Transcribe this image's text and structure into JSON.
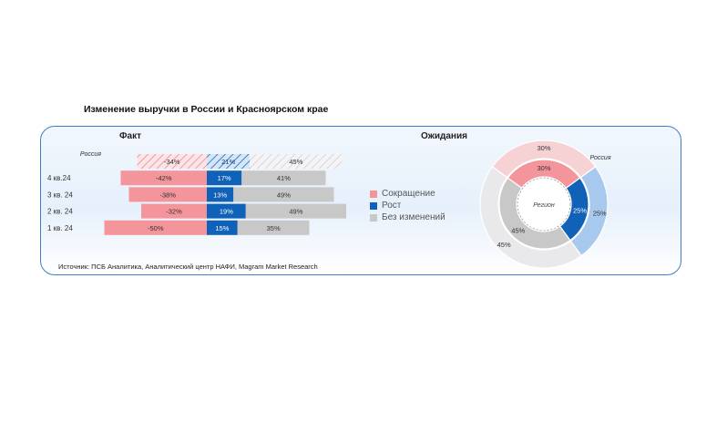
{
  "title": "Изменение выручки в России и Красноярском крае",
  "source": "Источник: ПСБ Аналитика, Аналитический центр НАФИ, Magram Market Research",
  "colors": {
    "decrease": "#f4959b",
    "growth": "#1061b8",
    "nochange": "#c8c8c8",
    "decrease_light": "#f7d2d5",
    "growth_light": "#a8c9ee",
    "nochange_light": "#e9e9ec"
  },
  "legend": [
    {
      "label": "Сокращение",
      "key": "decrease"
    },
    {
      "label": "Рост",
      "key": "growth"
    },
    {
      "label": "Без изменений",
      "key": "nochange"
    }
  ],
  "chart_data": [
    {
      "type": "bar",
      "title": "Факт",
      "orientation": "horizontal-diverging",
      "categories": [
        "Россия",
        "4 кв.24",
        "3 кв. 24",
        "2 кв. 24",
        "1 кв. 24"
      ],
      "series": [
        {
          "name": "Сокращение",
          "values": [
            -34,
            -42,
            -38,
            -32,
            -50
          ],
          "labels": [
            "-34%",
            "-42%",
            "-38%",
            "-32%",
            "-50%"
          ]
        },
        {
          "name": "Рост",
          "values": [
            21,
            17,
            13,
            19,
            15
          ],
          "labels": [
            "21%",
            "17%",
            "13%",
            "19%",
            "15%"
          ]
        },
        {
          "name": "Без изменений",
          "values": [
            45,
            41,
            49,
            49,
            35
          ],
          "labels": [
            "45%",
            "41%",
            "49%",
            "49%",
            "35%"
          ]
        }
      ],
      "hatched_categories": [
        "Россия"
      ]
    },
    {
      "type": "pie",
      "subtype": "double-donut",
      "title": "Ожидания",
      "center_label": "Регион",
      "outer_label": "Россия",
      "rings": [
        {
          "name": "Регион",
          "values": [
            30,
            25,
            45
          ],
          "labels": [
            "30%",
            "25%",
            "45%"
          ]
        },
        {
          "name": "Россия",
          "values": [
            30,
            25,
            45
          ],
          "labels": [
            "30%",
            "25%",
            "45%"
          ]
        }
      ],
      "slice_names": [
        "Сокращение",
        "Рост",
        "Без изменений"
      ]
    }
  ]
}
